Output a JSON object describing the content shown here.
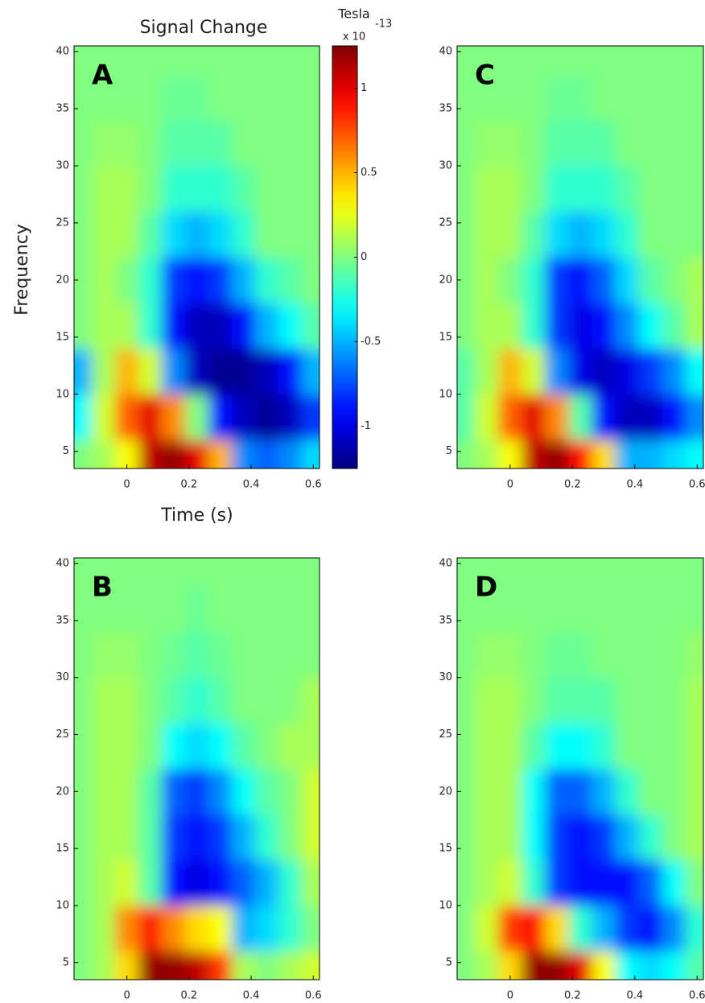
{
  "title": "Signal Change",
  "x_label": "Time (s)",
  "y_label": "Frequency",
  "colorbar": {
    "label": "Tesla",
    "multiplier": "x 10",
    "exponent": "-13",
    "lim": [
      -1.25,
      1.25
    ],
    "ticks": [
      -1,
      -0.5,
      0,
      0.5,
      1
    ]
  },
  "chart_data": [
    {
      "type": "heatmap",
      "panel": "A",
      "x": [
        -0.15,
        -0.075,
        0,
        0.075,
        0.15,
        0.225,
        0.3,
        0.375,
        0.45,
        0.525,
        0.6
      ],
      "y": [
        4,
        8,
        12,
        16,
        20,
        24,
        28,
        32,
        36,
        40
      ],
      "z": [
        [
          0,
          0.1,
          0.3,
          1.1,
          1.2,
          1.0,
          0.5,
          -0.6,
          -0.7,
          -0.6,
          -0.4
        ],
        [
          -0.3,
          0.2,
          0.7,
          1.0,
          0.6,
          0,
          -0.9,
          -1.1,
          -1.2,
          -1.1,
          -0.8
        ],
        [
          -0.5,
          0.1,
          0.5,
          0.2,
          -0.6,
          -1.1,
          -1.2,
          -1.2,
          -1.1,
          -0.9,
          -0.5
        ],
        [
          0,
          0.1,
          0.1,
          -0.2,
          -0.9,
          -1.1,
          -1.1,
          -0.9,
          -0.5,
          -0.3,
          -0.1
        ],
        [
          0,
          0.1,
          0,
          -0.2,
          -0.8,
          -0.9,
          -0.8,
          -0.5,
          -0.2,
          -0.1,
          0
        ],
        [
          0,
          0.1,
          0.1,
          -0.1,
          -0.4,
          -0.5,
          -0.4,
          -0.2,
          0,
          0,
          0
        ],
        [
          0,
          0.1,
          0.1,
          0,
          -0.2,
          -0.2,
          -0.2,
          -0.1,
          0,
          0,
          0
        ],
        [
          0,
          0.05,
          0.05,
          0,
          -0.1,
          -0.1,
          -0.1,
          0,
          0,
          0,
          0
        ],
        [
          0,
          0,
          0,
          0,
          -0.05,
          -0.05,
          0,
          0,
          0,
          0,
          0
        ],
        [
          0,
          0,
          0,
          0,
          0,
          0,
          0,
          0,
          0,
          0,
          0
        ]
      ],
      "xlim": [
        -0.17,
        0.62
      ],
      "ylim": [
        3.5,
        40.5
      ],
      "xticks": [
        0,
        0.2,
        0.4,
        0.6
      ],
      "yticks": [
        5,
        10,
        15,
        20,
        25,
        30,
        35,
        40
      ]
    },
    {
      "type": "heatmap",
      "panel": "C",
      "x": [
        -0.15,
        -0.075,
        0,
        0.075,
        0.15,
        0.225,
        0.3,
        0.375,
        0.45,
        0.525,
        0.6
      ],
      "y": [
        4,
        8,
        12,
        16,
        20,
        24,
        28,
        32,
        36,
        40
      ],
      "z": [
        [
          0,
          0.1,
          0.3,
          1.1,
          1.2,
          0.9,
          0.4,
          -0.5,
          -0.5,
          -0.4,
          -0.3
        ],
        [
          -0.1,
          0.2,
          0.7,
          1.0,
          0.6,
          -0.1,
          -0.9,
          -1.1,
          -1.1,
          -0.9,
          -0.6
        ],
        [
          -0.1,
          0.1,
          0.5,
          0.2,
          -0.6,
          -1.0,
          -1.1,
          -1.0,
          -0.8,
          -0.6,
          -0.3
        ],
        [
          0,
          0.1,
          0.1,
          -0.2,
          -0.8,
          -1.0,
          -0.9,
          -0.6,
          -0.3,
          -0.1,
          0.1
        ],
        [
          0,
          0.1,
          0,
          -0.2,
          -0.8,
          -0.9,
          -0.7,
          -0.4,
          -0.1,
          0,
          0.1
        ],
        [
          0,
          0.1,
          0.1,
          -0.1,
          -0.4,
          -0.5,
          -0.4,
          -0.2,
          0,
          0,
          0
        ],
        [
          0,
          0.1,
          0.1,
          0,
          -0.2,
          -0.2,
          -0.2,
          -0.1,
          0,
          0,
          0
        ],
        [
          0,
          0.05,
          0.05,
          0,
          -0.1,
          -0.1,
          -0.1,
          0,
          0,
          0,
          0
        ],
        [
          0,
          0,
          0,
          0,
          -0.05,
          -0.05,
          0,
          0,
          0,
          0,
          0
        ],
        [
          0,
          0,
          0,
          0,
          0,
          0,
          0,
          0,
          0,
          0,
          0
        ]
      ],
      "xlim": [
        -0.17,
        0.62
      ],
      "ylim": [
        3.5,
        40.5
      ],
      "xticks": [
        0,
        0.2,
        0.4,
        0.6
      ],
      "yticks": [
        5,
        10,
        15,
        20,
        25,
        30,
        35,
        40
      ]
    },
    {
      "type": "heatmap",
      "panel": "B",
      "x": [
        -0.15,
        -0.075,
        0,
        0.075,
        0.15,
        0.225,
        0.3,
        0.375,
        0.45,
        0.525,
        0.6
      ],
      "y": [
        4,
        8,
        12,
        16,
        20,
        24,
        28,
        32,
        36,
        40
      ],
      "z": [
        [
          0,
          0.1,
          0.4,
          1.2,
          1.2,
          1.1,
          0.8,
          0.1,
          0,
          0.1,
          0.2
        ],
        [
          0,
          0.1,
          0.6,
          0.9,
          0.6,
          0.4,
          0.3,
          -0.5,
          -0.4,
          -0.2,
          0
        ],
        [
          0,
          0.1,
          0.2,
          -0.1,
          -0.9,
          -1.0,
          -0.9,
          -0.7,
          -0.5,
          -0.2,
          0.1
        ],
        [
          0,
          0.1,
          0.1,
          -0.1,
          -0.8,
          -0.9,
          -0.8,
          -0.5,
          -0.2,
          0,
          0.2
        ],
        [
          0,
          0.1,
          0.1,
          -0.1,
          -0.7,
          -0.8,
          -0.6,
          -0.3,
          -0.1,
          0,
          0.2
        ],
        [
          0,
          0.1,
          0.1,
          0,
          -0.3,
          -0.4,
          -0.3,
          -0.1,
          0,
          0.1,
          0.1
        ],
        [
          0,
          0.1,
          0.1,
          0,
          -0.1,
          -0.2,
          -0.1,
          0,
          0,
          0,
          0.1
        ],
        [
          0,
          0.05,
          0.05,
          0,
          -0.05,
          -0.1,
          -0.05,
          0,
          0,
          0,
          0
        ],
        [
          0,
          0,
          0,
          0,
          0,
          -0.05,
          0,
          0,
          0,
          0,
          0
        ],
        [
          0,
          0,
          0,
          0,
          0,
          0,
          0,
          0,
          0,
          0,
          0
        ]
      ],
      "xlim": [
        -0.17,
        0.62
      ],
      "ylim": [
        3.5,
        40.5
      ],
      "xticks": [
        0,
        0.2,
        0.4,
        0.6
      ],
      "yticks": [
        5,
        10,
        15,
        20,
        25,
        30,
        35,
        40
      ]
    },
    {
      "type": "heatmap",
      "panel": "D",
      "x": [
        -0.15,
        -0.075,
        0,
        0.075,
        0.15,
        0.225,
        0.3,
        0.375,
        0.45,
        0.525,
        0.6
      ],
      "y": [
        4,
        8,
        12,
        16,
        20,
        24,
        28,
        32,
        36,
        40
      ],
      "z": [
        [
          0,
          0.1,
          0.4,
          1.2,
          1.2,
          1.0,
          0.3,
          -0.3,
          -0.4,
          -0.3,
          -0.1
        ],
        [
          0,
          0.2,
          0.8,
          0.9,
          0.4,
          -0.2,
          -0.5,
          -0.8,
          -0.9,
          -0.6,
          -0.2
        ],
        [
          0,
          0.1,
          0.2,
          -0.2,
          -0.8,
          -0.9,
          -0.9,
          -0.9,
          -0.7,
          -0.3,
          0
        ],
        [
          0,
          0.1,
          0.1,
          -0.3,
          -0.8,
          -0.9,
          -0.8,
          -0.5,
          -0.2,
          0,
          0.1
        ],
        [
          0,
          0.1,
          0.1,
          -0.3,
          -0.7,
          -0.7,
          -0.5,
          -0.2,
          0,
          0,
          0.1
        ],
        [
          0,
          0.1,
          0.1,
          -0.1,
          -0.3,
          -0.3,
          -0.2,
          0,
          0,
          0,
          0.1
        ],
        [
          0,
          0.1,
          0.1,
          0,
          -0.1,
          -0.1,
          -0.1,
          0,
          0,
          0,
          0.1
        ],
        [
          0,
          0.05,
          0.05,
          0,
          -0.05,
          -0.05,
          0,
          0,
          0,
          0,
          0.05
        ],
        [
          0,
          0,
          0,
          0,
          0,
          0,
          0,
          0,
          0,
          0,
          0
        ],
        [
          0,
          0,
          0,
          0,
          0,
          0,
          0,
          0,
          0,
          0,
          0
        ]
      ],
      "xlim": [
        -0.17,
        0.62
      ],
      "ylim": [
        3.5,
        40.5
      ],
      "xticks": [
        0,
        0.2,
        0.4,
        0.6
      ],
      "yticks": [
        5,
        10,
        15,
        20,
        25,
        30,
        35,
        40
      ]
    }
  ]
}
